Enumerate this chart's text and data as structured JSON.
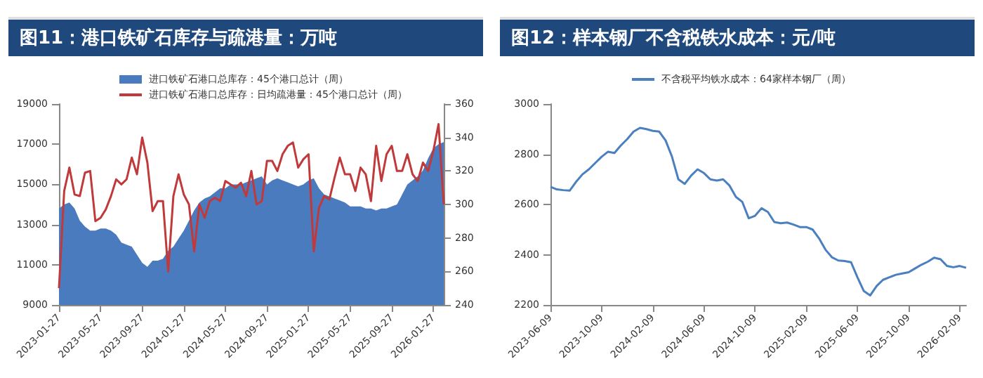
{
  "chart_data": [
    {
      "type": "line",
      "title": "图11：港口铁矿石库存与疏港量：万吨",
      "categories": [
        "2023-01-27",
        null,
        null,
        null,
        null,
        null,
        null,
        null,
        "2023-05-27",
        null,
        null,
        null,
        null,
        null,
        null,
        null,
        "2023-09-27",
        null,
        null,
        null,
        null,
        null,
        null,
        null,
        "2024-01-27",
        null,
        null,
        null,
        null,
        null,
        null,
        null,
        "2024-05-27",
        null,
        null,
        null,
        null,
        null,
        null,
        null,
        "2024-09-27",
        null,
        null,
        null,
        null,
        null,
        null,
        null,
        "2025-01-27",
        null,
        null,
        null,
        null,
        null,
        null,
        null,
        "2025-05-27",
        null,
        null,
        null,
        null,
        null,
        null,
        null,
        "2025-09-27",
        null,
        null,
        null,
        null,
        null,
        null,
        null,
        "2026-01-27",
        null,
        null
      ],
      "series": [
        {
          "type": "area",
          "name": "进口铁矿石港口总库存：45个港口总计（周）",
          "color": "#4a7bbf",
          "values": [
            13800,
            14000,
            14100,
            13800,
            13200,
            12900,
            12700,
            12700,
            12800,
            12800,
            12700,
            12500,
            12100,
            12000,
            11900,
            11500,
            11100,
            10900,
            11200,
            11200,
            11300,
            11700,
            11900,
            12300,
            12700,
            13200,
            13700,
            14100,
            14300,
            14400,
            14600,
            14800,
            14800,
            15000,
            15000,
            15000,
            15100,
            15200,
            15300,
            15400,
            15000,
            15200,
            15300,
            15200,
            15100,
            15000,
            14900,
            15000,
            15200,
            15300,
            14800,
            14500,
            14400,
            14300,
            14200,
            14100,
            13900,
            13900,
            13900,
            13800,
            13800,
            13700,
            13800,
            13800,
            13900,
            14000,
            14500,
            15000,
            15200,
            15400,
            15700,
            16300,
            16800,
            17000,
            17100
          ]
        },
        {
          "axis": "y2",
          "name": "进口铁矿石港口总库存：日均疏港量：45个港口总计（周）",
          "color": "#c0393b",
          "values": [
            250,
            308,
            322,
            306,
            305,
            319,
            320,
            290,
            292,
            297,
            305,
            315,
            312,
            315,
            328,
            318,
            340,
            325,
            296,
            302,
            302,
            260,
            305,
            318,
            306,
            300,
            272,
            300,
            292,
            302,
            304,
            302,
            314,
            312,
            310,
            313,
            305,
            320,
            300,
            302,
            326,
            326,
            320,
            330,
            335,
            337,
            322,
            327,
            330,
            272,
            298,
            305,
            303,
            316,
            328,
            318,
            318,
            308,
            322,
            318,
            302,
            335,
            314,
            330,
            335,
            320,
            320,
            330,
            318,
            314,
            325,
            320,
            332,
            348,
            300
          ]
        }
      ],
      "ylim": [
        9000,
        19000
      ],
      "yticks": [
        9000,
        11000,
        13000,
        15000,
        17000,
        19000
      ],
      "y2lim": [
        240,
        360
      ],
      "y2ticks": [
        240,
        260,
        280,
        300,
        320,
        340,
        360
      ],
      "legend": "top",
      "marker": "none",
      "grid": false
    },
    {
      "type": "line",
      "title": "图12：样本钢厂不含税铁水成本：元/吨",
      "categories": [
        "2023-06-09",
        null,
        null,
        null,
        null,
        null,
        null,
        null,
        "2023-10-09",
        null,
        null,
        null,
        null,
        null,
        null,
        null,
        "2024-02-09",
        null,
        null,
        null,
        null,
        null,
        null,
        null,
        "2024-06-09",
        null,
        null,
        null,
        null,
        null,
        null,
        null,
        "2024-10-09",
        null,
        null,
        null,
        null,
        null,
        null,
        null,
        "2025-02-09",
        null,
        null,
        null,
        null,
        null,
        null,
        null,
        "2025-06-09",
        null,
        null,
        null,
        null,
        null,
        null,
        null,
        "2025-10-09",
        null,
        null,
        null,
        null,
        null,
        null,
        null,
        "2026-02-09",
        null
      ],
      "series": [
        {
          "name": "不含税平均铁水成本：64家样本钢厂（周）",
          "color": "#4a7fc0",
          "values": [
            2670,
            2660,
            2657,
            2655,
            2690,
            2720,
            2740,
            2765,
            2790,
            2810,
            2805,
            2835,
            2860,
            2890,
            2905,
            2900,
            2893,
            2890,
            2855,
            2790,
            2700,
            2682,
            2715,
            2740,
            2725,
            2700,
            2695,
            2700,
            2675,
            2630,
            2610,
            2545,
            2555,
            2585,
            2570,
            2530,
            2525,
            2528,
            2520,
            2510,
            2510,
            2500,
            2465,
            2420,
            2390,
            2377,
            2375,
            2370,
            2310,
            2255,
            2238,
            2275,
            2300,
            2310,
            2320,
            2325,
            2330,
            2345,
            2360,
            2372,
            2388,
            2382,
            2355,
            2350,
            2355,
            2348
          ]
        }
      ],
      "ylim": [
        2200,
        3000
      ],
      "yticks": [
        2200,
        2400,
        2600,
        2800,
        3000
      ],
      "legend": "top",
      "marker": "none",
      "grid": false
    }
  ]
}
